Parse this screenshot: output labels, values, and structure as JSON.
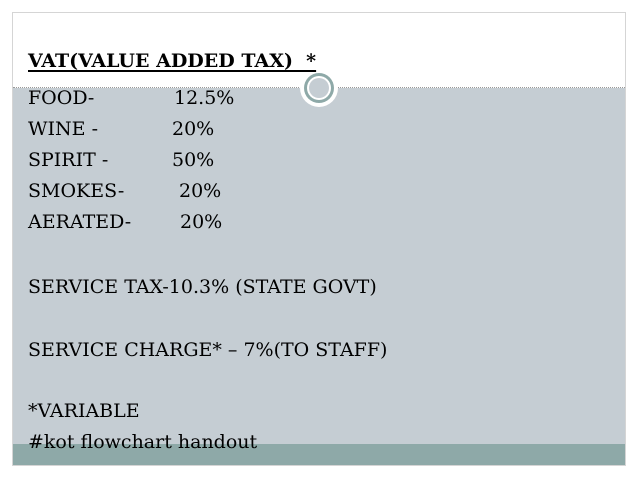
{
  "title": "VAT(VALUE ADDED TAX)  *",
  "vat_rates": [
    {
      "item": "FOOD-",
      "rate": "12.5%"
    },
    {
      "item": "WINE -",
      "rate": "20%"
    },
    {
      "item": "SPIRIT -",
      "rate": "50%"
    },
    {
      "item": "SMOKES-",
      "rate": "20%"
    },
    {
      "item": "AERATED-",
      "rate": "20%"
    }
  ],
  "service_tax": "SERVICE TAX-10.3% (STATE GOVT)",
  "service_charge": "SERVICE CHARGE* – 7%(TO STAFF)",
  "variable_note": "*VARIABLE",
  "footer_text": "#kot flowchart handout",
  "colors": {
    "content_background": "#c5cdd3",
    "bottom_band": "#8ea9a8"
  }
}
